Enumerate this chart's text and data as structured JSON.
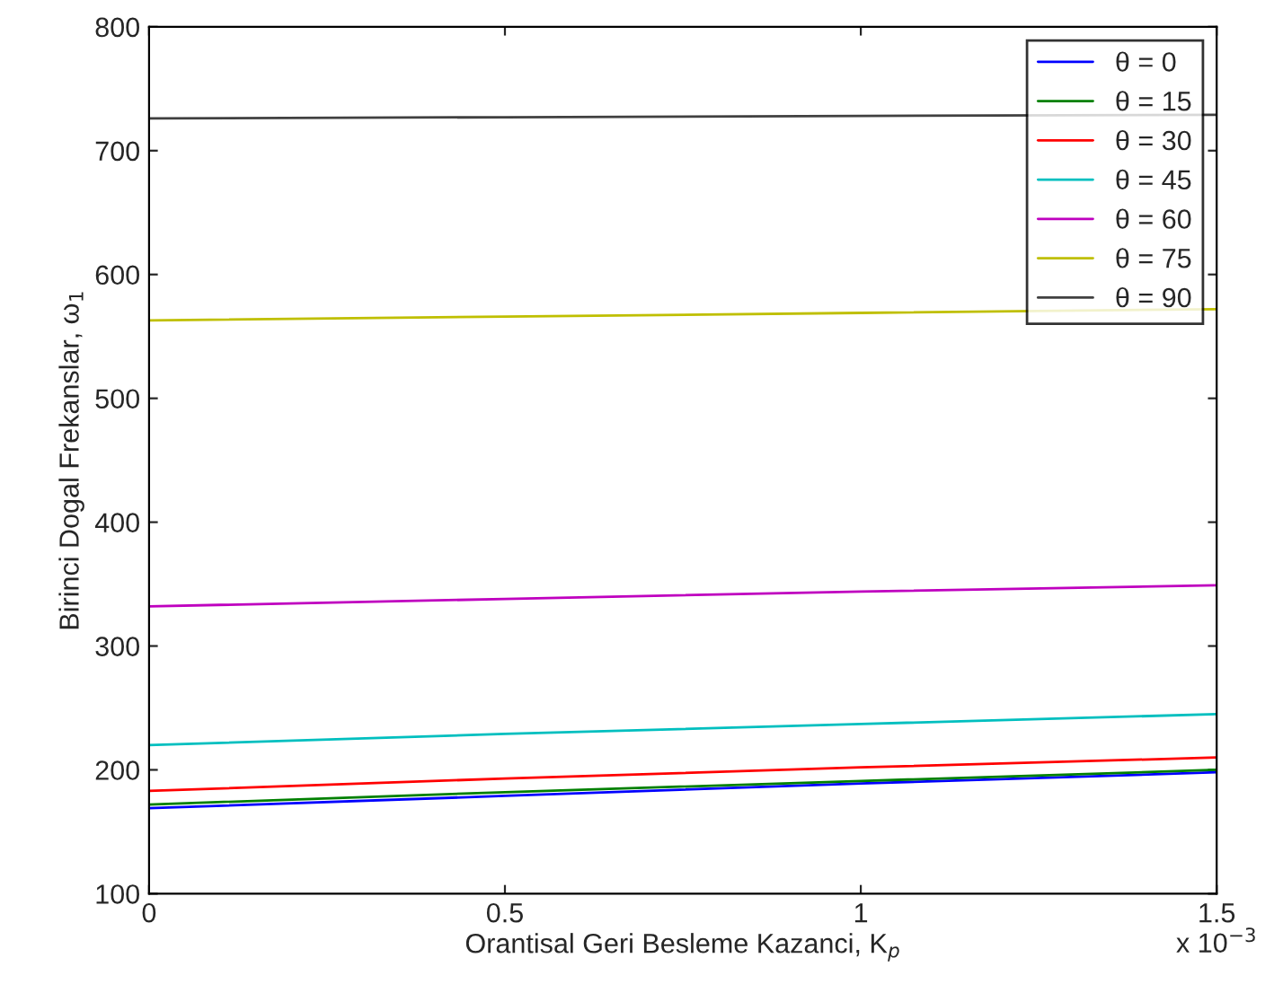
{
  "chart_data": {
    "type": "line",
    "xlabel": "Orantisal Geri Besleme Kazanci, K$_{p}$",
    "ylabel": "Birinci Dogal Frekanslar, ω$_{1}$",
    "x": [
      0,
      0.5,
      1,
      1.5
    ],
    "xlim": [
      0,
      1.5
    ],
    "xticks": [
      0,
      0.5,
      1,
      1.5
    ],
    "ylim": [
      100,
      800
    ],
    "yticks": [
      100,
      200,
      300,
      400,
      500,
      600,
      700,
      800
    ],
    "series": [
      {
        "name": "θ = 0",
        "color": "#0000ff",
        "values": [
          169,
          179,
          189,
          198
        ]
      },
      {
        "name": "θ = 15",
        "color": "#008000",
        "values": [
          172,
          182,
          191,
          200
        ]
      },
      {
        "name": "θ = 30",
        "color": "#ff0000",
        "values": [
          183,
          193,
          202,
          210
        ]
      },
      {
        "name": "θ = 45",
        "color": "#00bfbf",
        "values": [
          220,
          229,
          237,
          245
        ]
      },
      {
        "name": "θ = 60",
        "color": "#bf00bf",
        "values": [
          332,
          338,
          344,
          349
        ]
      },
      {
        "name": "θ = 75",
        "color": "#bfbf00",
        "values": [
          563,
          566,
          569,
          572
        ]
      },
      {
        "name": "θ = 90",
        "color": "#404040",
        "values": [
          726,
          727,
          728,
          729
        ]
      }
    ],
    "annotations": [
      "x 10$^{−3}$"
    ],
    "legend": "top right",
    "grid": false
  }
}
